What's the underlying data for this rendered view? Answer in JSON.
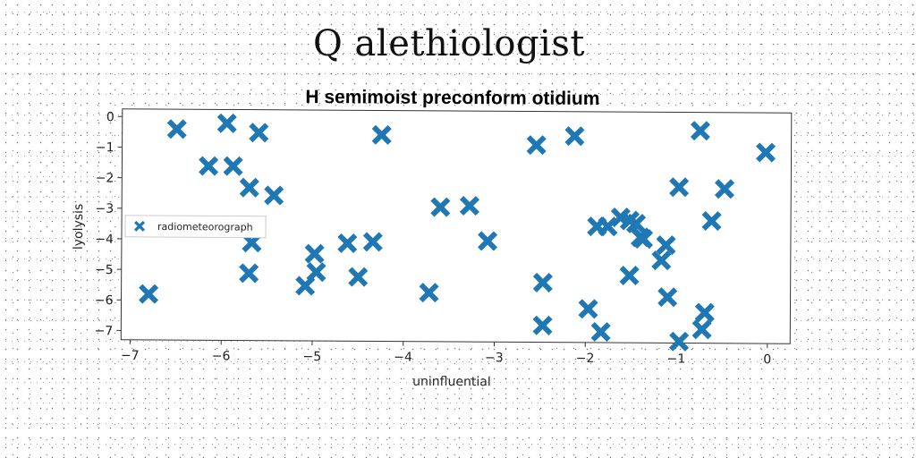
{
  "suptitle": "Q alethiologist",
  "chart_data": {
    "type": "scatter",
    "title": "H semimoist preconform otidium",
    "xlabel": "uninfluential",
    "ylabel": "lyolysis",
    "xlim": [
      -7.1,
      0.25
    ],
    "ylim": [
      -7.3,
      0.25
    ],
    "xticks": [
      -7,
      -6,
      -5,
      -4,
      -3,
      -2,
      -1,
      0
    ],
    "yticks": [
      0,
      -1,
      -2,
      -3,
      -4,
      -5,
      -6,
      -7
    ],
    "xtick_labels": [
      "−7",
      "−6",
      "−5",
      "−4",
      "−3",
      "−2",
      "−1",
      "0"
    ],
    "ytick_labels": [
      "0",
      "−1",
      "−2",
      "−3",
      "−4",
      "−5",
      "−6",
      "−7"
    ],
    "grid": false,
    "legend_position": "center-left",
    "series": [
      {
        "name": "radiometeorograph",
        "color": "#1f77b4",
        "marker": "X",
        "x": [
          -6.8,
          -6.5,
          -5.95,
          -5.6,
          -6.15,
          -5.88,
          -5.7,
          -5.43,
          -5.67,
          -5.7,
          -4.98,
          -4.96,
          -5.08,
          -4.62,
          -4.34,
          -4.5,
          -4.25,
          -3.6,
          -3.28,
          -3.08,
          -3.72,
          -2.55,
          -2.13,
          -2.47,
          -2.47,
          -1.97,
          -1.83,
          -1.88,
          -1.76,
          -1.62,
          -1.52,
          -1.45,
          -1.4,
          -1.37,
          -1.52,
          -1.17,
          -1.12,
          -1.1,
          -0.98,
          -0.97,
          -0.75,
          -0.62,
          -0.48,
          -0.69,
          -0.72,
          -0.03
        ],
        "y": [
          -5.8,
          -0.4,
          -0.2,
          -0.5,
          -1.6,
          -1.6,
          -2.3,
          -2.55,
          -4.1,
          -5.1,
          -4.45,
          -5.05,
          -5.5,
          -4.1,
          -4.05,
          -5.2,
          -0.55,
          -2.9,
          -2.85,
          -4.0,
          -5.7,
          -0.85,
          -0.55,
          -5.35,
          -6.75,
          -6.2,
          -6.95,
          -3.5,
          -3.5,
          -3.2,
          -3.3,
          -3.4,
          -3.85,
          -3.9,
          -5.1,
          -4.6,
          -4.1,
          -5.8,
          -2.2,
          -7.25,
          -0.35,
          -3.3,
          -2.25,
          -6.3,
          -6.85,
          -1.05
        ]
      }
    ]
  }
}
